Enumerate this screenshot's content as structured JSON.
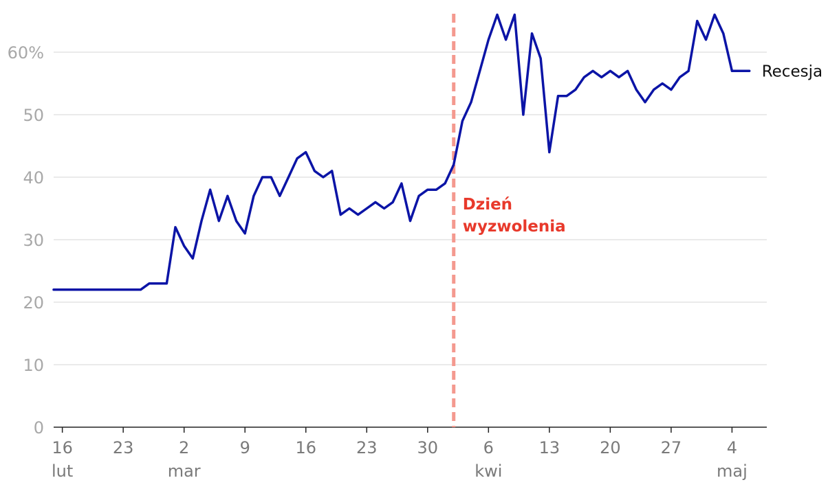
{
  "chart_data": {
    "type": "line",
    "title": "",
    "xlabel": "",
    "ylabel": "",
    "x_axis": {
      "type": "date",
      "range": [
        "2025-02-15",
        "2025-05-08"
      ],
      "ticks": [
        {
          "date": "2025-02-16",
          "label": "16",
          "sublabel": "lut"
        },
        {
          "date": "2025-02-23",
          "label": "23",
          "sublabel": ""
        },
        {
          "date": "2025-03-02",
          "label": "2",
          "sublabel": "mar"
        },
        {
          "date": "2025-03-09",
          "label": "9",
          "sublabel": ""
        },
        {
          "date": "2025-03-16",
          "label": "16",
          "sublabel": ""
        },
        {
          "date": "2025-03-23",
          "label": "23",
          "sublabel": ""
        },
        {
          "date": "2025-03-30",
          "label": "30",
          "sublabel": ""
        },
        {
          "date": "2025-04-06",
          "label": "6",
          "sublabel": "kwi"
        },
        {
          "date": "2025-04-13",
          "label": "13",
          "sublabel": ""
        },
        {
          "date": "2025-04-20",
          "label": "20",
          "sublabel": ""
        },
        {
          "date": "2025-04-27",
          "label": "27",
          "sublabel": ""
        },
        {
          "date": "2025-05-04",
          "label": "4",
          "sublabel": "maj"
        }
      ]
    },
    "y_axis": {
      "range": [
        0,
        66
      ],
      "ticks": [
        {
          "value": 0,
          "label": "0"
        },
        {
          "value": 10,
          "label": "10"
        },
        {
          "value": 20,
          "label": "20"
        },
        {
          "value": 30,
          "label": "30"
        },
        {
          "value": 40,
          "label": "40"
        },
        {
          "value": 50,
          "label": "50"
        },
        {
          "value": 60,
          "label": "60%"
        }
      ],
      "grid": true
    },
    "series": [
      {
        "name": "Recesja",
        "color": "#0b14a6",
        "start_date": "2025-02-15",
        "step_days": 1,
        "values": [
          22,
          22,
          22,
          22,
          22,
          22,
          22,
          22,
          22,
          22,
          22,
          23,
          23,
          23,
          32,
          29,
          27,
          33,
          38,
          33,
          37,
          33,
          31,
          37,
          40,
          40,
          37,
          40,
          43,
          44,
          41,
          40,
          41,
          34,
          35,
          34,
          35,
          36,
          35,
          36,
          39,
          33,
          37,
          38,
          38,
          39,
          42,
          49,
          52,
          57,
          62,
          66,
          62,
          66,
          50,
          63,
          59,
          44,
          53,
          53,
          54,
          56,
          57,
          56,
          57,
          56,
          57,
          54,
          52,
          54,
          55,
          54,
          56,
          57,
          65,
          62,
          66,
          63,
          57,
          57,
          57
        ]
      }
    ],
    "annotations": [
      {
        "type": "vline",
        "date": "2025-04-02",
        "color": "#f4998f",
        "text_color": "#e8392b",
        "lines": [
          "Dzień",
          "wyzwolenia"
        ]
      }
    ],
    "legend": "none"
  }
}
